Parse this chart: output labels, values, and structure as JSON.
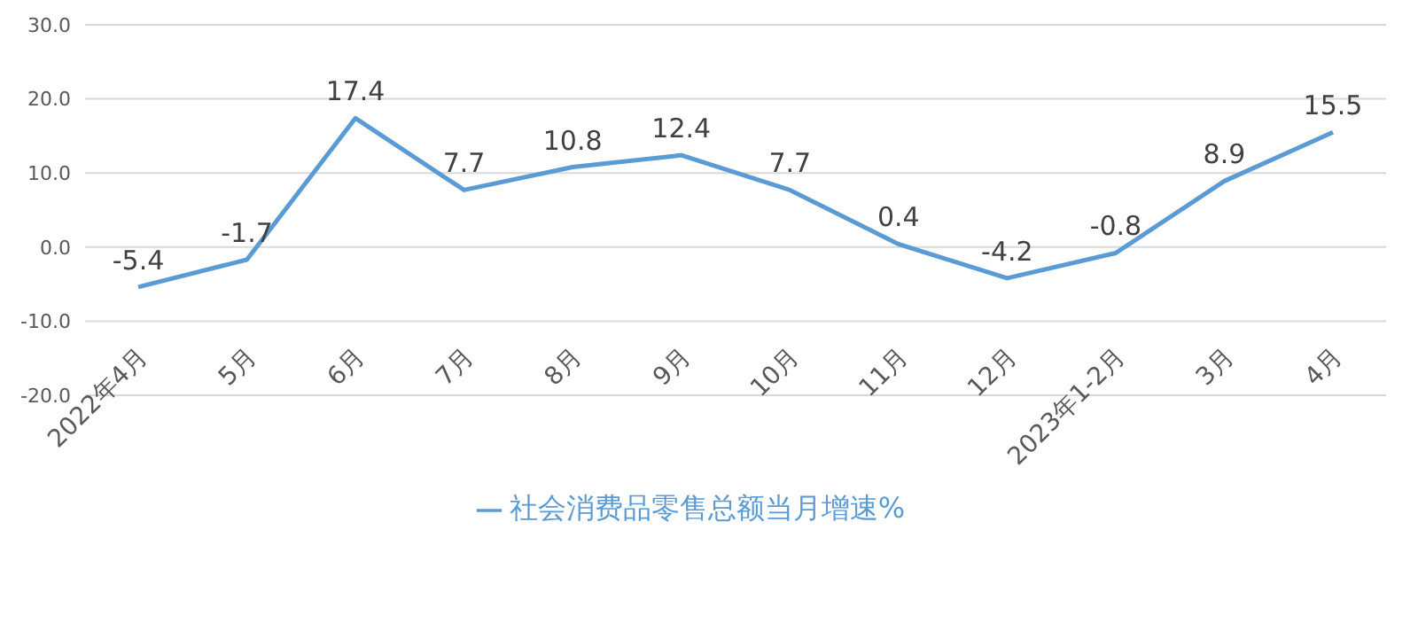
{
  "chart_data": {
    "type": "line",
    "categories": [
      "2022年4月",
      "5月",
      "6月",
      "7月",
      "8月",
      "9月",
      "10月",
      "11月",
      "12月",
      "2023年1-2月",
      "3月",
      "4月"
    ],
    "series": [
      {
        "name": "社会消费品零售总额当月增速%",
        "color": "#5b9bd5",
        "values": [
          -5.4,
          -1.7,
          17.4,
          7.7,
          10.8,
          12.4,
          7.7,
          0.4,
          -4.2,
          -0.8,
          8.9,
          15.5
        ]
      }
    ],
    "ylim": [
      -20,
      30
    ],
    "yticks": [
      {
        "value": -20,
        "label": "-20.0"
      },
      {
        "value": -10,
        "label": "-10.0"
      },
      {
        "value": 0,
        "label": "0.0"
      },
      {
        "value": 10,
        "label": "10.0"
      },
      {
        "value": 20,
        "label": "20.0"
      },
      {
        "value": 30,
        "label": "30.0"
      }
    ],
    "grid": "y",
    "legend": "bottom",
    "marker": "none",
    "line_style": "solid",
    "data_labels": true
  }
}
